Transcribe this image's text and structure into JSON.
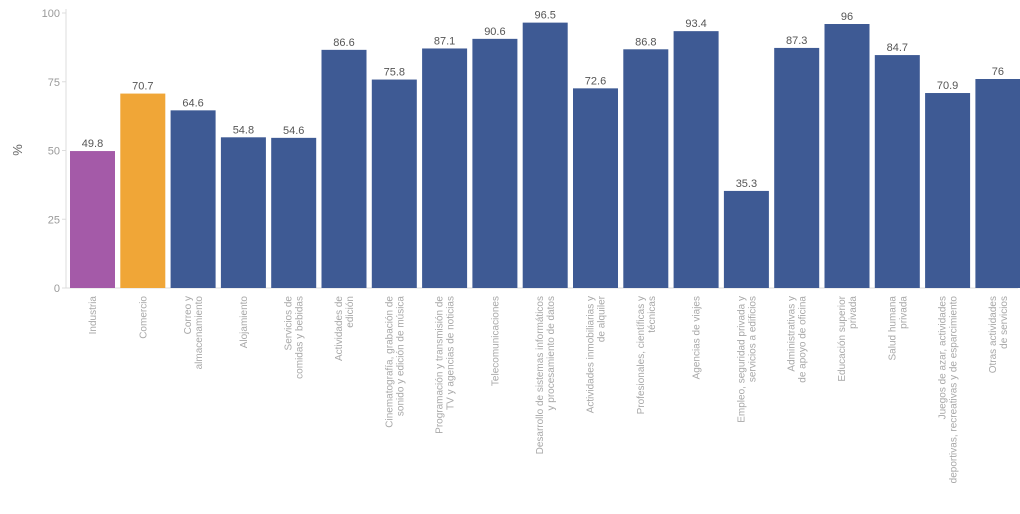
{
  "chart_data": {
    "type": "bar",
    "ylabel": "%",
    "ylim": [
      0,
      100
    ],
    "yticks": [
      0,
      25,
      50,
      75,
      100
    ],
    "categories": [
      [
        "Industria"
      ],
      [
        "Comercio"
      ],
      [
        "Correo y",
        "almacenamiento"
      ],
      [
        "Alojamiento"
      ],
      [
        "Servicios de",
        "comidas y bebidas"
      ],
      [
        "Actividades de",
        "edición"
      ],
      [
        "Cinematografía, grabación de",
        "sonido y edición de música"
      ],
      [
        "Programación y transmisión de",
        "TV y agencias de noticias"
      ],
      [
        "Telecomunicaciones"
      ],
      [
        "Desarrollo de sistemas informáticos",
        "y procesamiento de datos"
      ],
      [
        "Actividades inmobiliarias y",
        "de alquiler"
      ],
      [
        "Profesionales, científicas y",
        "técnicas"
      ],
      [
        "Agencias de viajes"
      ],
      [
        "Empleo, seguridad privada y",
        "servicios a edificios"
      ],
      [
        "Administrativas y",
        "de apoyo de oficina"
      ],
      [
        "Educación superior",
        "privada"
      ],
      [
        "Salud humana",
        "privada"
      ],
      [
        "Juegos de azar, actividades",
        "deportivas, recreativas y de esparcimiento"
      ],
      [
        "Otras actividades",
        "de servicios"
      ]
    ],
    "values": [
      49.8,
      70.7,
      64.6,
      54.8,
      54.6,
      86.6,
      75.8,
      87.1,
      90.6,
      96.5,
      72.6,
      86.8,
      93.4,
      35.3,
      87.3,
      96,
      84.7,
      70.9,
      76
    ],
    "value_labels": [
      "49.8",
      "70.7",
      "64.6",
      "54.8",
      "54.6",
      "86.6",
      "75.8",
      "87.1",
      "90.6",
      "96.5",
      "72.6",
      "86.8",
      "93.4",
      "35.3",
      "87.3",
      "96",
      "84.7",
      "70.9",
      "76"
    ],
    "colors": [
      "#a45aa8",
      "#f0a637",
      "#3e5a94",
      "#3e5a94",
      "#3e5a94",
      "#3e5a94",
      "#3e5a94",
      "#3e5a94",
      "#3e5a94",
      "#3e5a94",
      "#3e5a94",
      "#3e5a94",
      "#3e5a94",
      "#3e5a94",
      "#3e5a94",
      "#3e5a94",
      "#3e5a94",
      "#3e5a94",
      "#3e5a94"
    ],
    "grid": false,
    "legend": "none"
  }
}
